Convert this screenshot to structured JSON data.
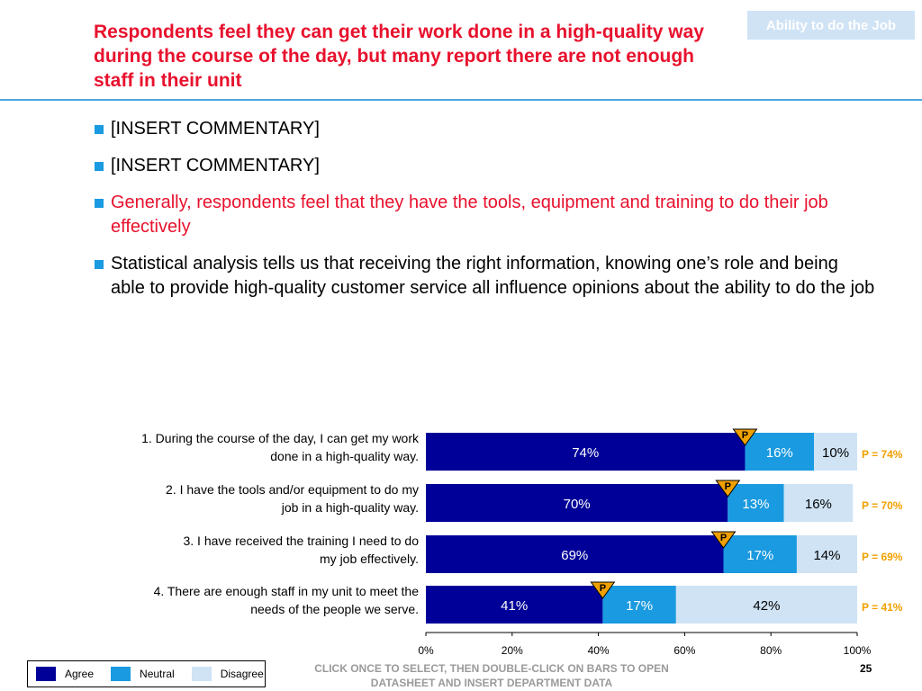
{
  "tag": "Ability to do the Job",
  "title": "Respondents feel they can get their work done in a high-quality way during the course of the day, but many report there are not enough staff in their unit",
  "bullets": [
    {
      "text": "[INSERT COMMENTARY]",
      "style": "normal"
    },
    {
      "text": "[INSERT COMMENTARY]",
      "style": "normal"
    },
    {
      "text": "Generally, respondents feel that they have the tools, equipment and training to do their job effectively",
      "style": "red"
    },
    {
      "text": "Statistical analysis tells us that receiving the right information, knowing one’s role and being able to provide high-quality customer service all influence opinions about the ability to do the job",
      "style": "normal"
    }
  ],
  "chart_data": {
    "type": "bar",
    "orientation": "horizontal",
    "stacked": true,
    "categories": [
      "1. During the course of the day, I can get my work done in a high-quality way.",
      "2. I have the tools and/or equipment to do my job in a high-quality way.",
      "3. I have received the training I need to do my job effectively.",
      "4. There are enough staff in my unit to meet the needs of the people we serve."
    ],
    "category_lines": [
      [
        "1. During the course of the day, I can get my work",
        "done in a high-quality way."
      ],
      [
        "2. I have the tools and/or equipment to do my",
        "job in a high-quality way."
      ],
      [
        "3. I have received the training I need to do",
        "my job effectively."
      ],
      [
        "4. There are enough staff in my unit to meet the",
        "needs of the people we serve."
      ]
    ],
    "series": [
      {
        "name": "Agree",
        "values": [
          74,
          70,
          69,
          41
        ],
        "color": "#000099",
        "label_color": "#ffffff"
      },
      {
        "name": "Neutral",
        "values": [
          16,
          13,
          17,
          17
        ],
        "color": "#1a9ae0",
        "label_color": "#ffffff"
      },
      {
        "name": "Disagree",
        "values": [
          10,
          16,
          14,
          42
        ],
        "color": "#cfe3f5",
        "label_color": "#000000"
      }
    ],
    "markers": {
      "label": "P",
      "values": [
        74,
        70,
        69,
        41
      ],
      "texts": [
        "P = 74%",
        "P = 70%",
        "P = 69%",
        "P = 41%"
      ],
      "color": "#f0a000"
    },
    "xlim": [
      0,
      100
    ],
    "xticks": [
      "0%",
      "20%",
      "40%",
      "60%",
      "80%",
      "100%"
    ],
    "legend_position": "bottom-left"
  },
  "footer": {
    "note": "CLICK ONCE TO SELECT, THEN DOUBLE-CLICK ON BARS TO OPEN DATASHEET AND INSERT DEPARTMENT DATA",
    "page": "25"
  }
}
